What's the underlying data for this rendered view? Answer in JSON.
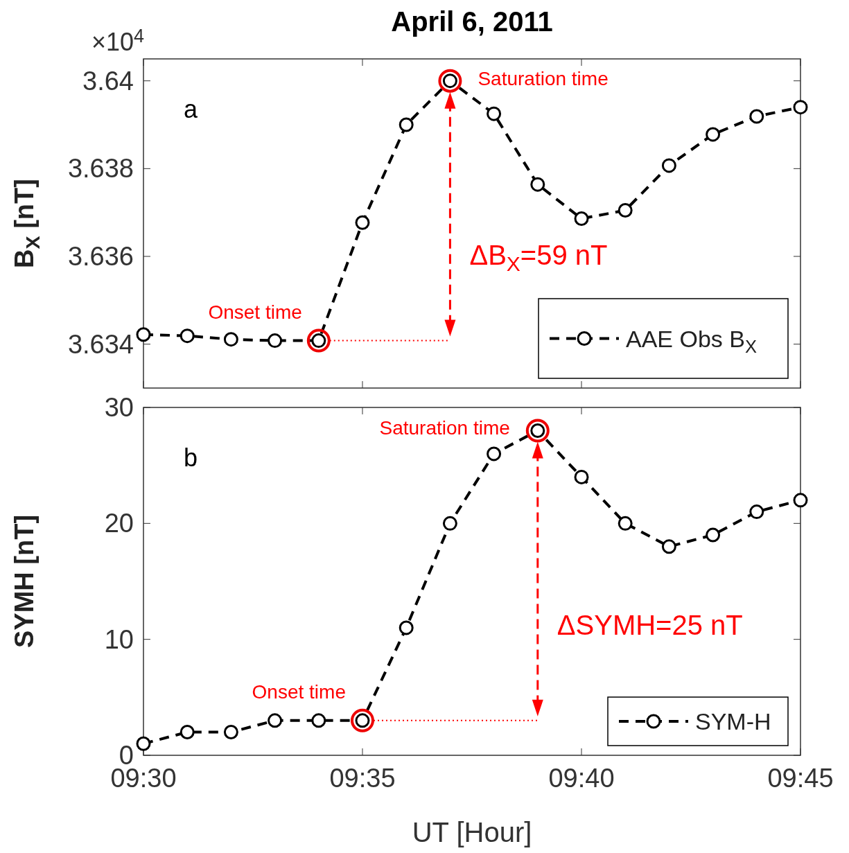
{
  "chart_data": [
    {
      "type": "line",
      "title": "April 6, 2011",
      "ylabel": "B$_{X}$ [nT]",
      "x": [
        9.5,
        9.51667,
        9.53333,
        9.55,
        9.56667,
        9.58333,
        9.6,
        9.61667,
        9.63333,
        9.65,
        9.66667,
        9.68333,
        9.7,
        9.71667,
        9.73333,
        9.75
      ],
      "series": [
        {
          "name": "AAE Obs B$_{X}$",
          "color": "#000000",
          "values": [
            3.63422,
            3.63419,
            3.63411,
            3.63408,
            3.63408,
            3.63677,
            3.639,
            3.64,
            3.63925,
            3.63764,
            3.63686,
            3.63705,
            3.63807,
            3.63878,
            3.63919,
            3.6394
          ]
        }
      ],
      "xlim": [
        9.5,
        9.75
      ],
      "xticks": [
        {
          "value": 9.5,
          "label": null
        },
        {
          "value": 9.58333,
          "label": null
        },
        {
          "value": 9.66667,
          "label": null
        },
        {
          "value": 9.75,
          "label": null
        }
      ],
      "ylim": [
        3.633,
        3.6405
      ],
      "yticks": [
        3.634,
        3.636,
        3.638,
        3.64
      ],
      "tick_labels": "y",
      "legend": "bottom right",
      "marker": "circle",
      "line_style": "dashed",
      "grid": false,
      "annotations": [
        {
          "text": "Onset time",
          "x": 9.56667,
          "y": 3.63408
        },
        {
          "text": "Saturation time",
          "x": 9.61667,
          "y": 3.64
        },
        "ΔB$_{X}$=59 nT",
        "a",
        "×10$^{4}$"
      ]
    },
    {
      "type": "line",
      "xlabel": "UT [Hour]",
      "ylabel": "SYMH [nT]",
      "x": [
        9.5,
        9.51667,
        9.53333,
        9.55,
        9.56667,
        9.58333,
        9.6,
        9.61667,
        9.63333,
        9.65,
        9.66667,
        9.68333,
        9.7,
        9.71667,
        9.73333,
        9.75
      ],
      "series": [
        {
          "name": "SYM-H",
          "color": "#000000",
          "values": [
            1,
            2,
            2,
            3,
            3,
            3,
            11,
            20,
            26,
            28,
            24,
            20,
            18,
            19,
            21,
            22
          ]
        }
      ],
      "xlim": [
        9.5,
        9.75
      ],
      "xticks": [
        {
          "value": 9.5,
          "label": "09:30"
        },
        {
          "value": 9.58333,
          "label": "09:35"
        },
        {
          "value": 9.66667,
          "label": "09:40"
        },
        {
          "value": 9.75,
          "label": "09:45"
        }
      ],
      "ylim": [
        0,
        30
      ],
      "yticks": [
        0,
        10,
        20,
        30
      ],
      "legend": "bottom right",
      "marker": "circle",
      "line_style": "dashed",
      "grid": false,
      "annotations": [
        {
          "text": "Onset time",
          "x": 9.58333,
          "y": 3
        },
        {
          "text": "Saturation time",
          "x": 9.65,
          "y": 28
        },
        "ΔSYMH=25 nT",
        "b"
      ]
    }
  ]
}
